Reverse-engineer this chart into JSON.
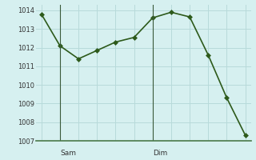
{
  "x_values": [
    0,
    1,
    2,
    3,
    4,
    5,
    6,
    7,
    8,
    9,
    10,
    11
  ],
  "y_values": [
    1013.8,
    1012.1,
    1011.4,
    1011.85,
    1012.3,
    1012.55,
    1013.6,
    1013.9,
    1013.65,
    1011.6,
    1009.3,
    1007.3
  ],
  "day_labels": [
    [
      "Sam",
      1
    ],
    [
      "Dim",
      6
    ]
  ],
  "day_separators": [
    1,
    6
  ],
  "ylim": [
    1007,
    1014.3
  ],
  "yticks": [
    1007,
    1008,
    1009,
    1010,
    1011,
    1012,
    1013,
    1014
  ],
  "line_color": "#2d5a1b",
  "marker_color": "#2d5a1b",
  "bg_color": "#d6f0f0",
  "grid_color": "#b8dada",
  "axis_color": "#4a7a4a",
  "separator_color": "#3a5a3a"
}
